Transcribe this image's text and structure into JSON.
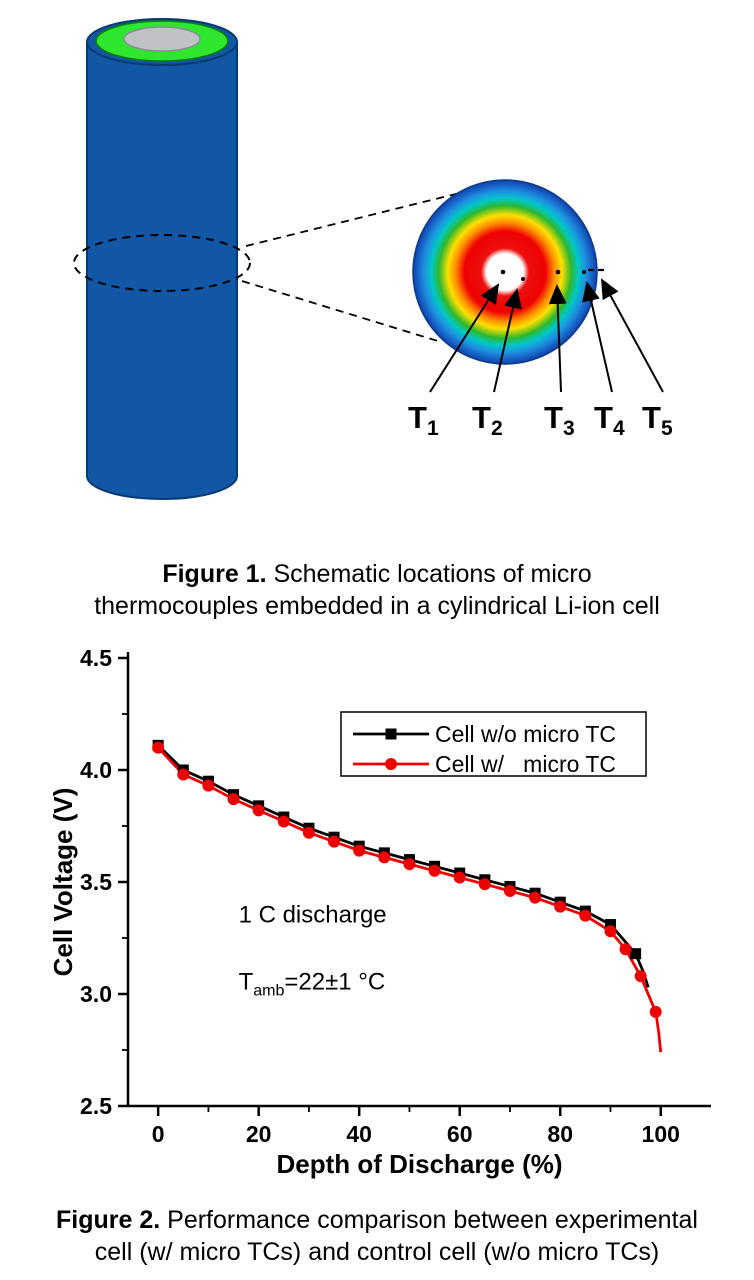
{
  "figure1": {
    "caption_label": "Figure 1.",
    "caption_line1": " Schematic locations of micro",
    "caption_line2": "thermocouples embedded in a cylindrical Li-ion cell",
    "thermocouples": [
      {
        "label": "T",
        "sub": "1"
      },
      {
        "label": "T",
        "sub": "2"
      },
      {
        "label": "T",
        "sub": "3"
      },
      {
        "label": "T",
        "sub": "4"
      },
      {
        "label": "T",
        "sub": "5"
      }
    ],
    "colors": {
      "cell_body": "#1256a6",
      "cell_top_ring": "#2ee62e",
      "terminal": "#c0c2c8"
    }
  },
  "figure2": {
    "caption_label": "Figure 2.",
    "caption_line1": " Performance comparison between experimental",
    "caption_line2": "cell (w/ micro TCs) and control cell (w/o micro TCs)"
  },
  "chart_data": {
    "type": "line",
    "title": "",
    "xlabel": "Depth of Discharge (%)",
    "ylabel": "Cell Voltage (V)",
    "xlim": [
      -6,
      110
    ],
    "ylim": [
      2.5,
      4.5
    ],
    "xticks": [
      0,
      20,
      40,
      60,
      80,
      100
    ],
    "xticks_minor": [
      10,
      30,
      50,
      70,
      90
    ],
    "yticks": [
      2.5,
      3.0,
      3.5,
      4.0,
      4.5
    ],
    "yticks_minor": [
      2.75,
      3.25,
      3.75,
      4.25
    ],
    "grid": false,
    "legend_position": "top-center",
    "annotations": [
      {
        "x": 16,
        "y": 3.32,
        "text": "1 C discharge"
      },
      {
        "x": 16,
        "y": 3.02,
        "pre": "T",
        "sub": "amb",
        "post": "=22±1 °C"
      }
    ],
    "series": [
      {
        "name": "Cell w/o micro TC",
        "color": "#000000",
        "marker": "square",
        "x": [
          0,
          5,
          10,
          15,
          20,
          25,
          30,
          35,
          40,
          45,
          50,
          55,
          60,
          65,
          70,
          75,
          80,
          85,
          90,
          95
        ],
        "y": [
          4.11,
          4.0,
          3.95,
          3.89,
          3.84,
          3.79,
          3.74,
          3.7,
          3.66,
          3.63,
          3.6,
          3.57,
          3.54,
          3.51,
          3.48,
          3.45,
          3.41,
          3.37,
          3.31,
          3.18
        ],
        "x_tail": [
          96.5,
          97.5
        ],
        "y_tail": [
          3.1,
          3.03
        ]
      },
      {
        "name": "Cell w/   micro TC",
        "color": "#ee0000",
        "marker": "circle",
        "x": [
          0,
          5,
          10,
          15,
          20,
          25,
          30,
          35,
          40,
          45,
          50,
          55,
          60,
          65,
          70,
          75,
          80,
          85,
          90,
          93,
          96,
          99
        ],
        "y": [
          4.1,
          3.98,
          3.93,
          3.87,
          3.82,
          3.77,
          3.72,
          3.68,
          3.64,
          3.61,
          3.58,
          3.55,
          3.52,
          3.49,
          3.46,
          3.43,
          3.39,
          3.35,
          3.28,
          3.2,
          3.08,
          2.92
        ],
        "x_tail": [
          99.6,
          100
        ],
        "y_tail": [
          2.83,
          2.74
        ]
      }
    ]
  }
}
